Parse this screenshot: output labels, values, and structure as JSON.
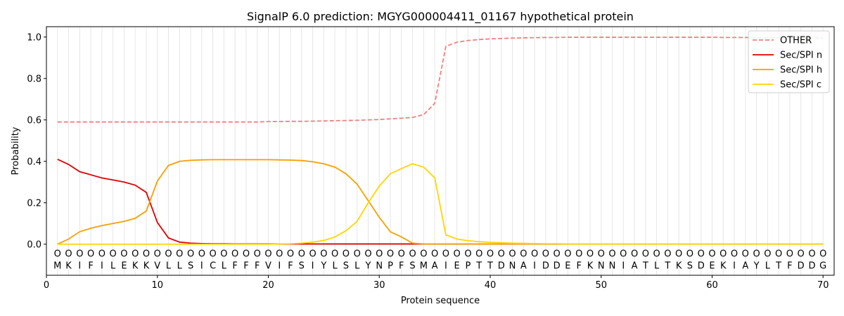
{
  "chart_data": {
    "type": "line",
    "title": "SignalP 6.0 prediction: MGYG000004411_01167 hypothetical protein",
    "xlabel": "Protein sequence",
    "ylabel": "Probability",
    "xlim": [
      0,
      71
    ],
    "ylim": [
      -0.15,
      1.05
    ],
    "x_ticks": [
      0,
      10,
      20,
      30,
      40,
      50,
      60,
      70
    ],
    "y_ticks": [
      0.0,
      0.2,
      0.4,
      0.6,
      0.8,
      1.0
    ],
    "x_tick_labels": [
      "0",
      "10",
      "20",
      "30",
      "40",
      "50",
      "60",
      "70"
    ],
    "y_tick_labels": [
      "0.0",
      "0.2",
      "0.4",
      "0.6",
      "0.8",
      "1.0"
    ],
    "grid": "vertical lines at every residue",
    "legend_position": "top-right",
    "sequence": [
      "M",
      "K",
      "I",
      "F",
      "I",
      "L",
      "E",
      "K",
      "K",
      "V",
      "L",
      "L",
      "S",
      "I",
      "C",
      "L",
      "F",
      "F",
      "F",
      "V",
      "I",
      "F",
      "S",
      "I",
      "Y",
      "L",
      "S",
      "L",
      "Y",
      "N",
      "P",
      "F",
      "S",
      "M",
      "A",
      "I",
      "E",
      "P",
      "T",
      "T",
      "D",
      "N",
      "A",
      "I",
      "D",
      "D",
      "E",
      "F",
      "K",
      "N",
      "N",
      "I",
      "A",
      "T",
      "L",
      "T",
      "K",
      "S",
      "D",
      "E",
      "K",
      "I",
      "A",
      "Y",
      "L",
      "T",
      "F",
      "D",
      "D",
      "G"
    ],
    "region_marker": "O",
    "series": [
      {
        "name": "OTHER",
        "color": "#f08080",
        "style": "dashed",
        "values": [
          0.59,
          0.59,
          0.59,
          0.59,
          0.59,
          0.59,
          0.59,
          0.59,
          0.59,
          0.59,
          0.59,
          0.59,
          0.59,
          0.59,
          0.59,
          0.59,
          0.59,
          0.59,
          0.59,
          0.592,
          0.592,
          0.593,
          0.593,
          0.594,
          0.595,
          0.596,
          0.597,
          0.598,
          0.6,
          0.602,
          0.605,
          0.608,
          0.612,
          0.625,
          0.68,
          0.955,
          0.975,
          0.983,
          0.988,
          0.991,
          0.993,
          0.995,
          0.996,
          0.997,
          0.998,
          0.998,
          0.999,
          0.999,
          0.999,
          0.999,
          0.999,
          0.999,
          0.999,
          0.999,
          0.999,
          0.999,
          0.999,
          0.999,
          0.999,
          0.999,
          0.998,
          0.998,
          0.998,
          0.997,
          0.997,
          0.997,
          0.997,
          0.997,
          0.996,
          0.996
        ]
      },
      {
        "name": "Sec/SPI n",
        "color": "#e00000",
        "style": "solid",
        "values": [
          0.41,
          0.385,
          0.35,
          0.335,
          0.32,
          0.31,
          0.3,
          0.285,
          0.25,
          0.105,
          0.03,
          0.01,
          0.005,
          0.003,
          0.002,
          0.002,
          0.001,
          0.001,
          0.001,
          0.001,
          0.001,
          0.001,
          0.001,
          0.001,
          0.001,
          0.001,
          0.001,
          0.001,
          0.001,
          0.001,
          0.001,
          0.001,
          0.001,
          0.001,
          0.001,
          0.001,
          0.001,
          0.001,
          0.001,
          0.001,
          0.001,
          0.001,
          0.001,
          0.001,
          0.001,
          0.001,
          0.001,
          0.001,
          0.001,
          0.001,
          0.001,
          0.001,
          0.001,
          0.001,
          0.001,
          0.001,
          0.001,
          0.001,
          0.001,
          0.001,
          0.001,
          0.001,
          0.001,
          0.001,
          0.001,
          0.001,
          0.001,
          0.001,
          0.001,
          0.001
        ]
      },
      {
        "name": "Sec/SPI h",
        "color": "#f5a000",
        "style": "solid",
        "values": [
          0.0,
          0.025,
          0.06,
          0.077,
          0.09,
          0.1,
          0.11,
          0.125,
          0.16,
          0.305,
          0.38,
          0.4,
          0.405,
          0.407,
          0.408,
          0.408,
          0.408,
          0.408,
          0.408,
          0.408,
          0.407,
          0.406,
          0.404,
          0.398,
          0.388,
          0.372,
          0.34,
          0.29,
          0.21,
          0.13,
          0.06,
          0.035,
          0.005,
          0.001,
          0.001,
          0.001,
          0.001,
          0.001,
          0.001,
          0.001,
          0.001,
          0.001,
          0.001,
          0.001,
          0.001,
          0.001,
          0.001,
          0.001,
          0.001,
          0.001,
          0.001,
          0.001,
          0.001,
          0.001,
          0.001,
          0.001,
          0.001,
          0.001,
          0.001,
          0.001,
          0.001,
          0.001,
          0.001,
          0.001,
          0.001,
          0.001,
          0.001,
          0.001,
          0.001,
          0.001
        ]
      },
      {
        "name": "Sec/SPI c",
        "color": "#ffd500",
        "style": "solid",
        "values": [
          0.0,
          0.0,
          0.0,
          0.0,
          0.0,
          0.0,
          0.0,
          0.0,
          0.0,
          0.0,
          0.0,
          0.0,
          0.0,
          0.0,
          0.0,
          0.0,
          0.0,
          0.0,
          0.0,
          0.0,
          0.001,
          0.002,
          0.005,
          0.01,
          0.018,
          0.035,
          0.065,
          0.11,
          0.2,
          0.28,
          0.34,
          0.365,
          0.388,
          0.372,
          0.32,
          0.045,
          0.025,
          0.017,
          0.012,
          0.009,
          0.007,
          0.005,
          0.004,
          0.003,
          0.002,
          0.002,
          0.001,
          0.001,
          0.001,
          0.001,
          0.001,
          0.001,
          0.001,
          0.001,
          0.001,
          0.001,
          0.001,
          0.001,
          0.001,
          0.001,
          0.001,
          0.001,
          0.001,
          0.001,
          0.001,
          0.001,
          0.001,
          0.001,
          0.001,
          0.001
        ]
      }
    ]
  }
}
